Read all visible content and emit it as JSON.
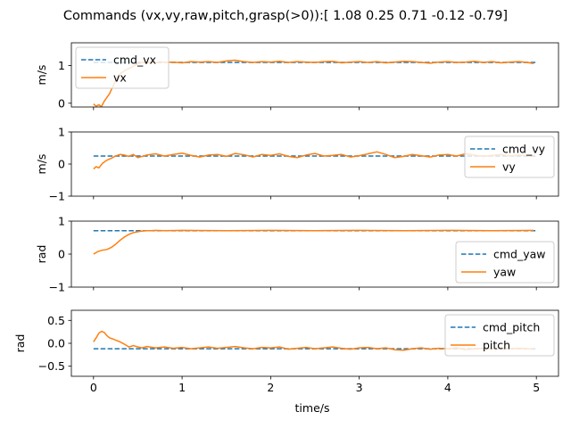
{
  "chart_data": {
    "title": "Commands (vx,vy,raw,pitch,grasp(>0)):[ 1.08  0.25  0.71 -0.12 -0.79]",
    "xlabel": "time/s",
    "xlim": [
      -0.25,
      5.25
    ],
    "xticks": [
      0,
      1,
      2,
      3,
      4,
      5
    ],
    "xtick_labels": [
      "0",
      "1",
      "2",
      "3",
      "4",
      "5"
    ],
    "colors": {
      "command": "#1f77b4",
      "actual": "#ff7f0e"
    },
    "subplots": [
      {
        "type": "line",
        "ylabel": "m/s",
        "ylim": [
          -0.1,
          1.6
        ],
        "yticks": [
          0,
          1
        ],
        "ytick_labels": [
          "0",
          "1"
        ],
        "legend_position": "upper-left",
        "series": [
          {
            "name": "cmd_vx",
            "style": "dashed",
            "x": [
              0.0,
              5.0
            ],
            "y": [
              1.08,
              1.08
            ]
          },
          {
            "name": "vx",
            "style": "solid",
            "x": [
              0.0,
              0.03,
              0.06,
              0.09,
              0.12,
              0.15,
              0.18,
              0.22,
              0.26,
              0.3,
              0.35,
              0.4,
              0.45,
              0.5,
              0.55,
              0.6,
              0.65,
              0.7,
              0.75,
              0.8,
              0.9,
              1.0,
              1.1,
              1.2,
              1.3,
              1.4,
              1.5,
              1.6,
              1.7,
              1.8,
              1.9,
              2.0,
              2.1,
              2.2,
              2.3,
              2.4,
              2.5,
              2.6,
              2.7,
              2.8,
              2.9,
              3.0,
              3.1,
              3.2,
              3.3,
              3.4,
              3.5,
              3.6,
              3.7,
              3.8,
              3.9,
              4.0,
              4.1,
              4.2,
              4.3,
              4.4,
              4.5,
              4.6,
              4.7,
              4.8,
              4.9,
              4.97
            ],
            "y": [
              -0.02,
              -0.08,
              -0.04,
              -0.09,
              0.05,
              0.15,
              0.25,
              0.45,
              0.65,
              0.78,
              0.86,
              0.92,
              0.98,
              1.04,
              1.08,
              1.06,
              1.09,
              1.07,
              1.1,
              1.08,
              1.09,
              1.07,
              1.1,
              1.09,
              1.1,
              1.08,
              1.12,
              1.14,
              1.1,
              1.08,
              1.1,
              1.09,
              1.11,
              1.08,
              1.1,
              1.09,
              1.08,
              1.1,
              1.11,
              1.07,
              1.09,
              1.1,
              1.08,
              1.1,
              1.07,
              1.09,
              1.11,
              1.1,
              1.08,
              1.06,
              1.09,
              1.1,
              1.08,
              1.09,
              1.11,
              1.08,
              1.1,
              1.07,
              1.09,
              1.1,
              1.08,
              1.05
            ]
          }
        ]
      },
      {
        "type": "line",
        "ylabel": "m/s",
        "ylim": [
          -1,
          1
        ],
        "yticks": [
          -1,
          0,
          1
        ],
        "ytick_labels": [
          "−1",
          "0",
          "1"
        ],
        "legend_position": "upper-right",
        "series": [
          {
            "name": "cmd_vy",
            "style": "dashed",
            "x": [
              0.0,
              5.0
            ],
            "y": [
              0.25,
              0.25
            ]
          },
          {
            "name": "vy",
            "style": "solid",
            "x": [
              0.0,
              0.03,
              0.06,
              0.1,
              0.15,
              0.2,
              0.25,
              0.3,
              0.35,
              0.4,
              0.45,
              0.5,
              0.6,
              0.7,
              0.8,
              0.9,
              1.0,
              1.1,
              1.2,
              1.3,
              1.4,
              1.5,
              1.6,
              1.7,
              1.8,
              1.9,
              2.0,
              2.1,
              2.2,
              2.3,
              2.4,
              2.5,
              2.6,
              2.7,
              2.8,
              2.9,
              3.0,
              3.1,
              3.2,
              3.3,
              3.4,
              3.5,
              3.6,
              3.7,
              3.8,
              3.9,
              4.0,
              4.1,
              4.2,
              4.3,
              4.4,
              4.5,
              4.6,
              4.7,
              4.8,
              4.9,
              4.97
            ],
            "y": [
              -0.15,
              -0.08,
              -0.12,
              0.02,
              0.12,
              0.18,
              0.25,
              0.3,
              0.28,
              0.24,
              0.3,
              0.2,
              0.28,
              0.32,
              0.25,
              0.3,
              0.34,
              0.27,
              0.22,
              0.28,
              0.3,
              0.24,
              0.33,
              0.29,
              0.22,
              0.3,
              0.27,
              0.32,
              0.24,
              0.2,
              0.28,
              0.33,
              0.25,
              0.27,
              0.3,
              0.22,
              0.26,
              0.32,
              0.38,
              0.3,
              0.2,
              0.24,
              0.3,
              0.26,
              0.22,
              0.28,
              0.3,
              0.25,
              0.32,
              0.28,
              0.24,
              0.27,
              0.3,
              0.25,
              0.28,
              0.26,
              0.24
            ]
          }
        ]
      },
      {
        "type": "line",
        "ylabel": "rad",
        "ylim": [
          -1,
          1
        ],
        "yticks": [
          -1,
          0,
          1
        ],
        "ytick_labels": [
          "−1",
          "0",
          "1"
        ],
        "legend_position": "lower-right",
        "series": [
          {
            "name": "cmd_yaw",
            "style": "dashed",
            "x": [
              0.0,
              5.0
            ],
            "y": [
              0.71,
              0.71
            ]
          },
          {
            "name": "yaw",
            "style": "solid",
            "x": [
              0.0,
              0.05,
              0.1,
              0.15,
              0.2,
              0.25,
              0.3,
              0.35,
              0.4,
              0.45,
              0.5,
              0.55,
              0.6,
              0.65,
              0.7,
              0.8,
              1.0,
              1.5,
              2.0,
              2.5,
              3.0,
              3.5,
              4.0,
              4.5,
              4.97
            ],
            "y": [
              0.0,
              0.08,
              0.12,
              0.14,
              0.2,
              0.3,
              0.42,
              0.52,
              0.6,
              0.65,
              0.68,
              0.7,
              0.71,
              0.71,
              0.72,
              0.71,
              0.72,
              0.71,
              0.72,
              0.71,
              0.72,
              0.71,
              0.72,
              0.71,
              0.72
            ]
          }
        ]
      },
      {
        "type": "line",
        "ylabel": "rad",
        "ylim": [
          -0.72,
          0.72
        ],
        "yticks": [
          -0.5,
          0.0,
          0.5
        ],
        "ytick_labels": [
          "−0.5",
          "0.0",
          "0.5"
        ],
        "legend_position": "upper-right",
        "series": [
          {
            "name": "cmd_pitch",
            "style": "dashed",
            "x": [
              0.0,
              5.0
            ],
            "y": [
              -0.12,
              -0.12
            ]
          },
          {
            "name": "pitch",
            "style": "solid",
            "x": [
              0.0,
              0.03,
              0.06,
              0.09,
              0.12,
              0.15,
              0.18,
              0.21,
              0.25,
              0.3,
              0.35,
              0.4,
              0.45,
              0.5,
              0.55,
              0.6,
              0.7,
              0.8,
              0.9,
              1.0,
              1.1,
              1.2,
              1.3,
              1.4,
              1.5,
              1.6,
              1.7,
              1.8,
              1.9,
              2.0,
              2.1,
              2.2,
              2.3,
              2.4,
              2.5,
              2.6,
              2.7,
              2.8,
              2.9,
              3.0,
              3.1,
              3.2,
              3.3,
              3.4,
              3.5,
              3.6,
              3.7,
              3.8,
              3.9,
              4.0,
              4.1,
              4.2,
              4.3,
              4.4,
              4.5,
              4.6,
              4.7,
              4.8,
              4.9,
              4.97
            ],
            "y": [
              0.03,
              0.12,
              0.22,
              0.26,
              0.24,
              0.17,
              0.12,
              0.1,
              0.07,
              0.03,
              -0.02,
              -0.08,
              -0.05,
              -0.08,
              -0.1,
              -0.07,
              -0.1,
              -0.08,
              -0.11,
              -0.09,
              -0.12,
              -0.1,
              -0.08,
              -0.11,
              -0.09,
              -0.07,
              -0.1,
              -0.12,
              -0.09,
              -0.1,
              -0.08,
              -0.13,
              -0.11,
              -0.09,
              -0.12,
              -0.1,
              -0.08,
              -0.11,
              -0.13,
              -0.1,
              -0.09,
              -0.12,
              -0.1,
              -0.14,
              -0.15,
              -0.12,
              -0.1,
              -0.13,
              -0.11,
              -0.12,
              -0.1,
              -0.14,
              -0.12,
              -0.11,
              -0.13,
              -0.1,
              -0.12,
              -0.11,
              -0.12,
              -0.13
            ]
          }
        ]
      }
    ]
  }
}
